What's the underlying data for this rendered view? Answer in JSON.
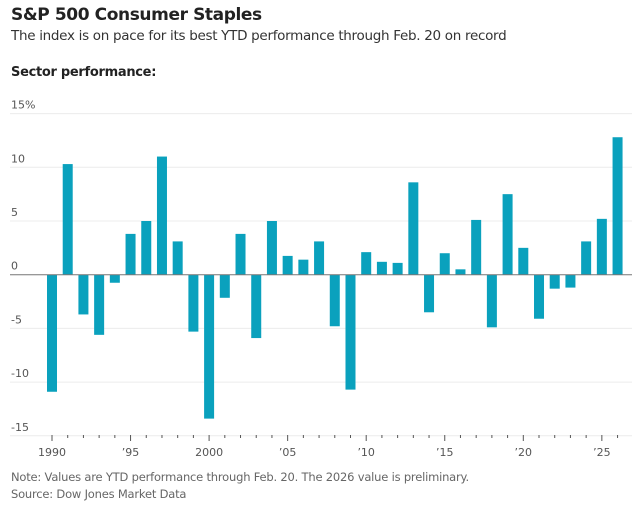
{
  "header": {
    "title": "S&P 500 Consumer Staples",
    "subtitle": "The index is on pace for its best YTD performance through Feb. 20 on record",
    "section_label": "Sector performance:"
  },
  "footer": {
    "note": "Note: Values are YTD performance through Feb. 20. The 2026 value is preliminary.",
    "source": "Source: Dow Jones Market Data"
  },
  "chart_data": {
    "type": "bar",
    "title": "S&P 500 Consumer Staples",
    "bar_color": "#0aa1bd",
    "ylim": [
      -15,
      15
    ],
    "y_ticks": [
      {
        "value": 15,
        "label": "15%"
      },
      {
        "value": 10,
        "label": "10"
      },
      {
        "value": 5,
        "label": "5"
      },
      {
        "value": 0,
        "label": "0"
      },
      {
        "value": -5,
        "label": "-5"
      },
      {
        "value": -10,
        "label": "-10"
      },
      {
        "value": -15,
        "label": "-15"
      }
    ],
    "x_ticks": [
      {
        "year": 1990,
        "label": "1990"
      },
      {
        "year": 1995,
        "label": "’95"
      },
      {
        "year": 2000,
        "label": "2000"
      },
      {
        "year": 2005,
        "label": "’05"
      },
      {
        "year": 2010,
        "label": "’10"
      },
      {
        "year": 2015,
        "label": "’15"
      },
      {
        "year": 2020,
        "label": "’20"
      },
      {
        "year": 2025,
        "label": "’25"
      }
    ],
    "grid": true,
    "categories": [
      1990,
      1991,
      1992,
      1993,
      1994,
      1995,
      1996,
      1997,
      1998,
      1999,
      2000,
      2001,
      2002,
      2003,
      2004,
      2005,
      2006,
      2007,
      2008,
      2009,
      2010,
      2011,
      2012,
      2013,
      2014,
      2015,
      2016,
      2017,
      2018,
      2019,
      2020,
      2021,
      2022,
      2023,
      2024,
      2025,
      2026
    ],
    "values": [
      -10.9,
      10.3,
      -3.7,
      -5.6,
      -0.75,
      3.8,
      5.0,
      11.0,
      3.1,
      -5.3,
      -13.4,
      -2.15,
      3.8,
      -5.9,
      5.0,
      1.75,
      1.4,
      3.1,
      -4.8,
      -10.7,
      2.1,
      1.2,
      1.1,
      8.6,
      -3.5,
      2.0,
      0.5,
      5.1,
      -4.9,
      7.5,
      2.5,
      -4.1,
      -1.3,
      -1.2,
      3.1,
      5.2,
      12.8
    ]
  }
}
